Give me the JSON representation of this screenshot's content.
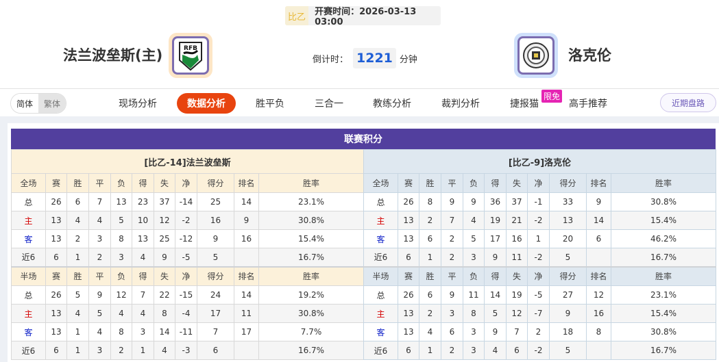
{
  "match": {
    "league": "比乙",
    "kickoff": "开赛时间：2026-03-13 03:00",
    "home": "法兰波垒斯(主)",
    "away": "洛克伦",
    "home_logo_text": "RFB",
    "countdown_label": "倒计时：",
    "countdown_value": "1221",
    "countdown_unit": "分钟"
  },
  "nav": {
    "lang": [
      "简体",
      "繁体"
    ],
    "tabs": [
      "现场分析",
      "数据分析",
      "胜平负",
      "三合一",
      "教练分析",
      "裁判分析",
      "捷报猫",
      "高手推荐"
    ],
    "active": "数据分析",
    "badge": "限免",
    "recent": "近期盘路"
  },
  "colors": {
    "header": "#523f9e",
    "active_tab": "#e8440f",
    "home_row": "#d40000",
    "away_row": "#1022c8"
  },
  "standings": {
    "title": "联赛积分",
    "teams": [
      {
        "name": "[比乙-14]法兰波垒斯",
        "full": {
          "header": [
            "全场",
            "赛",
            "胜",
            "平",
            "负",
            "得",
            "失",
            "净",
            "得分",
            "排名",
            "胜率"
          ],
          "rows": [
            [
              "总",
              "26",
              "6",
              "7",
              "13",
              "23",
              "37",
              "-14",
              "25",
              "14",
              "23.1%"
            ],
            [
              "主",
              "13",
              "4",
              "4",
              "5",
              "10",
              "12",
              "-2",
              "16",
              "9",
              "30.8%"
            ],
            [
              "客",
              "13",
              "2",
              "3",
              "8",
              "13",
              "25",
              "-12",
              "9",
              "16",
              "15.4%"
            ],
            [
              "近6",
              "6",
              "1",
              "2",
              "3",
              "4",
              "9",
              "-5",
              "5",
              "",
              "16.7%"
            ]
          ]
        },
        "half": {
          "header": [
            "半场",
            "赛",
            "胜",
            "平",
            "负",
            "得",
            "失",
            "净",
            "得分",
            "排名",
            "胜率"
          ],
          "rows": [
            [
              "总",
              "26",
              "5",
              "9",
              "12",
              "7",
              "22",
              "-15",
              "24",
              "14",
              "19.2%"
            ],
            [
              "主",
              "13",
              "4",
              "5",
              "4",
              "4",
              "8",
              "-4",
              "17",
              "11",
              "30.8%"
            ],
            [
              "客",
              "13",
              "1",
              "4",
              "8",
              "3",
              "14",
              "-11",
              "7",
              "17",
              "7.7%"
            ],
            [
              "近6",
              "6",
              "1",
              "3",
              "2",
              "1",
              "4",
              "-3",
              "6",
              "",
              "16.7%"
            ]
          ]
        }
      },
      {
        "name": "[比乙-9]洛克伦",
        "full": {
          "header": [
            "全场",
            "赛",
            "胜",
            "平",
            "负",
            "得",
            "失",
            "净",
            "得分",
            "排名",
            "胜率"
          ],
          "rows": [
            [
              "总",
              "26",
              "8",
              "9",
              "9",
              "36",
              "37",
              "-1",
              "33",
              "9",
              "30.8%"
            ],
            [
              "主",
              "13",
              "2",
              "7",
              "4",
              "19",
              "21",
              "-2",
              "13",
              "14",
              "15.4%"
            ],
            [
              "客",
              "13",
              "6",
              "2",
              "5",
              "17",
              "16",
              "1",
              "20",
              "6",
              "46.2%"
            ],
            [
              "近6",
              "6",
              "1",
              "2",
              "3",
              "9",
              "11",
              "-2",
              "5",
              "",
              "16.7%"
            ]
          ]
        },
        "half": {
          "header": [
            "半场",
            "赛",
            "胜",
            "平",
            "负",
            "得",
            "失",
            "净",
            "得分",
            "排名",
            "胜率"
          ],
          "rows": [
            [
              "总",
              "26",
              "6",
              "9",
              "11",
              "14",
              "19",
              "-5",
              "27",
              "12",
              "23.1%"
            ],
            [
              "主",
              "13",
              "2",
              "3",
              "8",
              "5",
              "12",
              "-7",
              "9",
              "16",
              "15.4%"
            ],
            [
              "客",
              "13",
              "4",
              "6",
              "3",
              "9",
              "7",
              "2",
              "18",
              "8",
              "30.8%"
            ],
            [
              "近6",
              "6",
              "1",
              "2",
              "3",
              "4",
              "6",
              "-2",
              "5",
              "",
              "16.7%"
            ]
          ]
        }
      }
    ]
  }
}
